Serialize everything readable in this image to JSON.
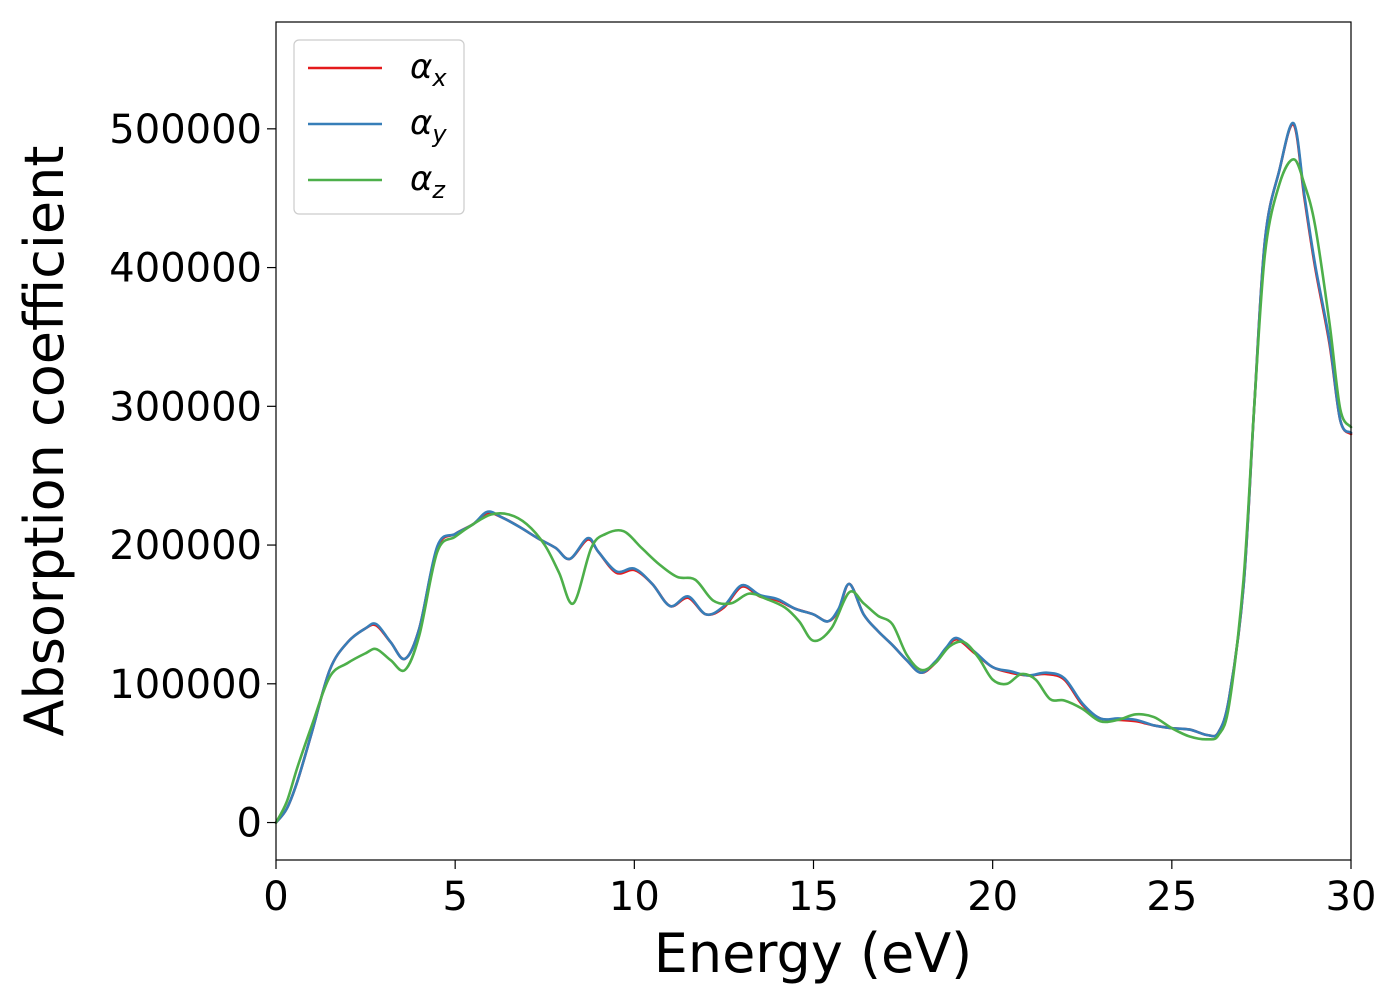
{
  "chart_data": {
    "type": "line",
    "title": "",
    "xlabel": "Energy (eV)",
    "ylabel": "Absorption coefficient",
    "xlim": [
      0,
      30
    ],
    "ylim": [
      -27000,
      577000
    ],
    "xticks": [
      0,
      5,
      10,
      15,
      20,
      25,
      30
    ],
    "yticks": [
      0,
      100000,
      200000,
      300000,
      400000,
      500000
    ],
    "grid": false,
    "legend": "top-left",
    "series": [
      {
        "name": "α",
        "subscript": "x",
        "color": "#e41a1c",
        "x": [
          0,
          0.3,
          0.6,
          1.0,
          1.5,
          2.0,
          2.5,
          2.8,
          3.2,
          3.6,
          4.0,
          4.5,
          5.0,
          5.5,
          5.9,
          6.3,
          6.8,
          7.3,
          7.8,
          8.2,
          8.7,
          9.0,
          9.5,
          10.0,
          10.5,
          11.0,
          11.5,
          12.0,
          12.5,
          13.0,
          13.5,
          14.0,
          14.5,
          15.0,
          15.4,
          15.7,
          16.0,
          16.4,
          16.8,
          17.2,
          17.6,
          18.0,
          18.4,
          18.7,
          19.0,
          19.5,
          20.0,
          20.5,
          21.0,
          21.5,
          22.0,
          22.5,
          23.0,
          23.5,
          24.0,
          24.5,
          25.0,
          25.5,
          26.0,
          26.3,
          26.6,
          27.0,
          27.3,
          27.6,
          28.0,
          28.4,
          28.7,
          29.0,
          29.4,
          29.7,
          30.0
        ],
        "y": [
          0,
          10000,
          30000,
          65000,
          110000,
          130000,
          140000,
          142000,
          130000,
          118000,
          140000,
          198000,
          208000,
          215000,
          223000,
          220000,
          213000,
          205000,
          198000,
          190000,
          204000,
          195000,
          180000,
          182000,
          172000,
          156000,
          162000,
          150000,
          155000,
          170000,
          163000,
          160000,
          154000,
          150000,
          145000,
          153000,
          172000,
          150000,
          138000,
          128000,
          117000,
          108000,
          115000,
          125000,
          132000,
          122000,
          112000,
          108000,
          106000,
          107000,
          103000,
          85000,
          75000,
          74000,
          73000,
          70000,
          68000,
          67000,
          63000,
          65000,
          90000,
          170000,
          300000,
          420000,
          470000,
          503000,
          450000,
          400000,
          345000,
          290000,
          280000
        ]
      },
      {
        "name": "α",
        "subscript": "y",
        "color": "#377eb8",
        "x": [
          0,
          0.3,
          0.6,
          1.0,
          1.5,
          2.0,
          2.5,
          2.8,
          3.2,
          3.6,
          4.0,
          4.5,
          5.0,
          5.5,
          5.9,
          6.3,
          6.8,
          7.3,
          7.8,
          8.2,
          8.7,
          9.0,
          9.5,
          10.0,
          10.5,
          11.0,
          11.5,
          12.0,
          12.5,
          13.0,
          13.5,
          14.0,
          14.5,
          15.0,
          15.4,
          15.7,
          16.0,
          16.4,
          16.8,
          17.2,
          17.6,
          18.0,
          18.4,
          18.7,
          19.0,
          19.5,
          20.0,
          20.5,
          21.0,
          21.5,
          22.0,
          22.5,
          23.0,
          23.5,
          24.0,
          24.5,
          25.0,
          25.5,
          26.0,
          26.3,
          26.6,
          27.0,
          27.3,
          27.6,
          28.0,
          28.4,
          28.7,
          29.0,
          29.4,
          29.7,
          30.0
        ],
        "y": [
          0,
          10000,
          30000,
          65000,
          110000,
          130000,
          140000,
          143000,
          130000,
          118000,
          140000,
          199000,
          208000,
          215000,
          224000,
          220000,
          213000,
          205000,
          198000,
          190000,
          205000,
          195000,
          181000,
          183000,
          172000,
          156000,
          163000,
          150000,
          156000,
          171000,
          164000,
          161000,
          154000,
          150000,
          145000,
          154000,
          172000,
          150000,
          138000,
          128000,
          117000,
          108000,
          116000,
          126000,
          133000,
          123000,
          112000,
          109000,
          106000,
          108000,
          104000,
          86000,
          75000,
          75000,
          74000,
          70000,
          68000,
          67000,
          63000,
          65000,
          90000,
          170000,
          300000,
          420000,
          470000,
          504000,
          452000,
          402000,
          347000,
          290000,
          281000
        ]
      },
      {
        "name": "α",
        "subscript": "z",
        "color": "#4daf4a",
        "x": [
          0,
          0.3,
          0.6,
          1.0,
          1.5,
          2.0,
          2.5,
          2.8,
          3.2,
          3.6,
          4.0,
          4.5,
          5.0,
          5.5,
          6.0,
          6.5,
          7.0,
          7.5,
          7.9,
          8.3,
          8.8,
          9.2,
          9.7,
          10.2,
          10.7,
          11.2,
          11.7,
          12.2,
          12.7,
          13.2,
          13.7,
          14.2,
          14.6,
          15.0,
          15.5,
          16.0,
          16.4,
          16.8,
          17.2,
          17.6,
          18.0,
          18.4,
          18.8,
          19.2,
          19.6,
          20.0,
          20.4,
          20.8,
          21.2,
          21.6,
          22.0,
          22.5,
          23.0,
          23.5,
          24.0,
          24.5,
          25.0,
          25.5,
          26.0,
          26.3,
          26.6,
          27.0,
          27.3,
          27.6,
          28.0,
          28.4,
          28.7,
          29.0,
          29.4,
          29.7,
          30.0
        ],
        "y": [
          0,
          15000,
          40000,
          70000,
          105000,
          115000,
          122000,
          125000,
          117000,
          110000,
          135000,
          195000,
          206000,
          215000,
          222000,
          222000,
          215000,
          200000,
          180000,
          158000,
          198000,
          208000,
          210000,
          198000,
          186000,
          177000,
          175000,
          160000,
          158000,
          165000,
          161000,
          155000,
          145000,
          131000,
          140000,
          166000,
          158000,
          149000,
          143000,
          121000,
          110000,
          115000,
          127000,
          130000,
          119000,
          103000,
          100000,
          107000,
          103000,
          89000,
          88000,
          82000,
          73000,
          74000,
          78000,
          76000,
          68000,
          62000,
          60000,
          63000,
          85000,
          175000,
          300000,
          410000,
          460000,
          478000,
          460000,
          430000,
          360000,
          298000,
          285000
        ]
      }
    ]
  }
}
